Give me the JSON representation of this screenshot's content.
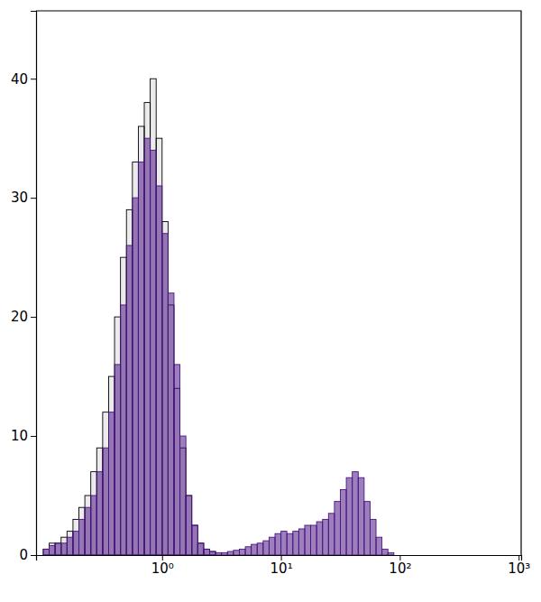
{
  "chart_data": {
    "type": "histogram",
    "log": "x",
    "bins": [
      0.1,
      0.1122,
      0.1259,
      0.1413,
      0.1585,
      0.1778,
      0.1995,
      0.2239,
      0.2512,
      0.2818,
      0.3162,
      0.3548,
      0.3981,
      0.4467,
      0.5012,
      0.5623,
      0.631,
      0.7079,
      0.7943,
      0.8913,
      1,
      1.122,
      1.259,
      1.413,
      1.585,
      1.778,
      1.995,
      2.239,
      2.512,
      2.818,
      3.162,
      3.548,
      3.981,
      4.467,
      5.012,
      5.623,
      6.31,
      7.079,
      7.943,
      8.913,
      10,
      11.22,
      12.59,
      14.13,
      15.85,
      17.78,
      19.95,
      22.39,
      25.12,
      28.18,
      31.62,
      35.48,
      39.81,
      44.67,
      50.12,
      56.23,
      63.1,
      70.79,
      79.43,
      89.13,
      100
    ],
    "series": [
      {
        "color": "#000000",
        "values": [
          0.5,
          1,
          1,
          1.5,
          2,
          3,
          4,
          5,
          7,
          9,
          12,
          15,
          20,
          25,
          29,
          33,
          36,
          38,
          40,
          35,
          28,
          21,
          14,
          9,
          5,
          2.5,
          1,
          0.5,
          0.3,
          0,
          0,
          0,
          0,
          0,
          0,
          0,
          0,
          0,
          0,
          0,
          0,
          0,
          0,
          0,
          0,
          0,
          0,
          0,
          0,
          0,
          0,
          0,
          0,
          0,
          0,
          0,
          0,
          0,
          0,
          0
        ]
      },
      {
        "color": "#4b1583",
        "values": [
          0.5,
          0.8,
          1,
          1,
          1.5,
          2,
          3,
          4,
          5,
          7,
          9,
          12,
          16,
          21,
          26,
          30,
          33,
          35,
          34,
          31,
          27,
          22,
          16,
          10,
          5,
          2.5,
          1,
          0.5,
          0.3,
          0.2,
          0.2,
          0.3,
          0.4,
          0.5,
          0.7,
          0.9,
          1,
          1.2,
          1.5,
          1.8,
          2,
          1.8,
          2,
          2.2,
          2.5,
          2.5,
          2.8,
          3,
          3.5,
          4.5,
          5.5,
          6.5,
          7,
          6.5,
          4.5,
          3,
          1.5,
          0.5,
          0.2,
          0
        ]
      }
    ],
    "xlim": [
      0.087,
      1050
    ],
    "xticks": [
      {
        "value": 1,
        "label": "10⁰"
      },
      {
        "value": 10,
        "label": "10¹"
      },
      {
        "value": 100,
        "label": "10²"
      },
      {
        "value": 1000,
        "label": "10³"
      }
    ],
    "ylim": [
      0,
      45.7
    ],
    "yticks": [
      0,
      10,
      20,
      30,
      40
    ]
  }
}
